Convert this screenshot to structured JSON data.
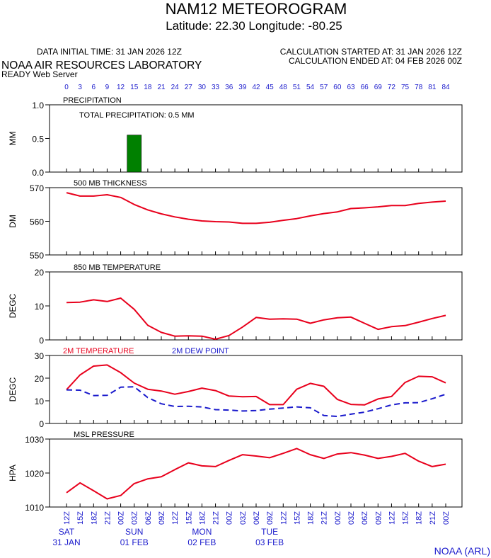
{
  "header": {
    "title": "NAM12 METEOROGRAM",
    "subtitle": "Latitude: 22.30 Longitude: -80.25",
    "data_initial_time": "DATA INITIAL TIME: 31 JAN 2026 12Z",
    "calc_started": "CALCULATION STARTED AT: 31 JAN 2026 12Z",
    "calc_ended": "CALCULATION ENDED AT: 04 FEB 2026 00Z",
    "lab": "NOAA AIR RESOURCES LABORATORY",
    "server": "READY Web Server"
  },
  "footer": {
    "credit": "NOAA (ARL)"
  },
  "colors": {
    "red": "#e8001c",
    "blue": "#1a1acc",
    "green": "#008000",
    "axis": "#000000"
  },
  "chart_data": {
    "forecast_hours": [
      0,
      3,
      6,
      9,
      12,
      15,
      18,
      21,
      24,
      27,
      30,
      33,
      36,
      39,
      42,
      45,
      48,
      51,
      54,
      57,
      60,
      63,
      66,
      69,
      72,
      75,
      78,
      81,
      84
    ],
    "time_labels": [
      "12Z",
      "15Z",
      "18Z",
      "21Z",
      "00Z",
      "03Z",
      "06Z",
      "09Z",
      "12Z",
      "15Z",
      "18Z",
      "21Z",
      "00Z",
      "03Z",
      "06Z",
      "09Z",
      "12Z",
      "15Z",
      "18Z",
      "21Z",
      "00Z",
      "03Z",
      "06Z",
      "09Z",
      "12Z",
      "15Z",
      "18Z",
      "21Z",
      "00Z"
    ],
    "days": [
      {
        "index": 0,
        "day": "SAT",
        "date": "31 JAN"
      },
      {
        "index": 5,
        "day": "SUN",
        "date": "01 FEB"
      },
      {
        "index": 10,
        "day": "MON",
        "date": "02 FEB"
      },
      {
        "index": 15,
        "day": "TUE",
        "date": "03 FEB"
      }
    ],
    "panels": [
      {
        "id": "precip",
        "type": "bar",
        "title": "PRECIPITATION",
        "ylabel": "MM",
        "ylim": [
          0,
          1
        ],
        "yticks": [
          "0.0",
          "0.5",
          "1.0"
        ],
        "ytick_values": [
          0,
          0.5,
          1.0
        ],
        "annotation": "TOTAL PRECIPITATION:   0.5 MM",
        "bars": [
          {
            "hour": 15,
            "value": 0.55
          }
        ]
      },
      {
        "id": "thickness",
        "type": "line",
        "title": "500 MB  THICKNESS",
        "ylabel": "DM",
        "ylim": [
          550,
          570
        ],
        "yticks": [
          "550",
          "560",
          "570"
        ],
        "ytick_values": [
          550,
          560,
          570
        ],
        "series": [
          {
            "color": "red",
            "dash": false,
            "values": [
              568.5,
              567.5,
              567.5,
              567.9,
              567.1,
              565.0,
              563.4,
              562.2,
              561.3,
              560.6,
              560.1,
              559.9,
              559.8,
              559.4,
              559.4,
              559.7,
              560.3,
              560.8,
              561.6,
              562.3,
              562.8,
              563.8,
              564.0,
              564.3,
              564.7,
              564.7,
              565.3,
              565.7,
              566.0
            ]
          }
        ]
      },
      {
        "id": "t850",
        "type": "line",
        "title": "850 MB  TEMPERATURE",
        "ylabel": "DEGC",
        "ylim": [
          0,
          20
        ],
        "yticks": [
          "0",
          "10",
          "20"
        ],
        "ytick_values": [
          0,
          10,
          20
        ],
        "series": [
          {
            "color": "red",
            "dash": false,
            "values": [
              11.0,
              11.1,
              11.8,
              11.3,
              12.3,
              9.0,
              4.3,
              2.2,
              1.1,
              1.2,
              1.1,
              0.2,
              1.3,
              3.8,
              6.6,
              6.1,
              6.2,
              6.1,
              4.9,
              5.9,
              6.5,
              6.7,
              4.9,
              3.1,
              3.9,
              4.2,
              5.2,
              6.3,
              7.2
            ]
          }
        ]
      },
      {
        "id": "t2m",
        "type": "line",
        "title": "",
        "ylabel": "DEGC",
        "ylim": [
          0,
          30
        ],
        "yticks": [
          "0",
          "10",
          "20",
          "30"
        ],
        "ytick_values": [
          0,
          10,
          20,
          30
        ],
        "legend": [
          {
            "label": "2M TEMPERATURE",
            "color": "red"
          },
          {
            "label": "2M  DEW POINT",
            "color": "blue"
          }
        ],
        "series": [
          {
            "color": "red",
            "dash": false,
            "values": [
              14.9,
              21.4,
              25.3,
              25.8,
              22.4,
              17.8,
              15.1,
              14.3,
              12.9,
              14.1,
              15.6,
              14.5,
              12.1,
              11.8,
              11.9,
              8.3,
              8.3,
              15.1,
              17.7,
              16.4,
              10.6,
              8.4,
              8.2,
              10.8,
              11.9,
              18.1,
              20.8,
              20.6,
              17.9
            ]
          },
          {
            "color": "blue",
            "dash": true,
            "values": [
              14.8,
              14.7,
              12.3,
              12.4,
              16.0,
              16.2,
              11.4,
              8.7,
              7.5,
              7.6,
              7.3,
              6.1,
              5.9,
              5.5,
              5.7,
              6.3,
              6.8,
              7.3,
              6.9,
              3.5,
              3.1,
              4.1,
              5.0,
              6.5,
              8.2,
              9.1,
              9.2,
              10.9,
              12.9
            ]
          }
        ]
      },
      {
        "id": "mslp",
        "type": "line",
        "title": "MSL PRESSURE",
        "ylabel": "HPA",
        "ylim": [
          1010,
          1030
        ],
        "yticks": [
          "1010",
          "1020",
          "1030"
        ],
        "ytick_values": [
          1010,
          1020,
          1030
        ],
        "series": [
          {
            "color": "red",
            "dash": false,
            "values": [
              1014.2,
              1017.1,
              1014.8,
              1012.4,
              1013.4,
              1016.9,
              1018.3,
              1018.9,
              1021.0,
              1023.0,
              1022.1,
              1021.9,
              1023.7,
              1025.4,
              1025.0,
              1024.5,
              1025.8,
              1027.2,
              1025.4,
              1024.3,
              1025.6,
              1026.0,
              1025.3,
              1024.3,
              1024.9,
              1025.8,
              1023.5,
              1021.9,
              1022.6
            ]
          }
        ]
      }
    ]
  }
}
